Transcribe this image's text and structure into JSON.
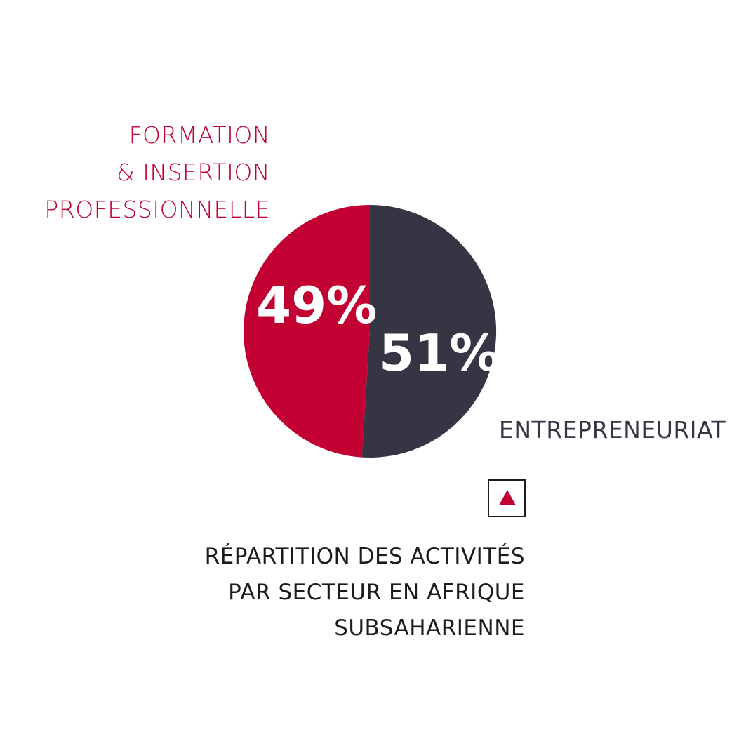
{
  "chart_data": {
    "type": "pie",
    "slices": [
      {
        "name_lines": [
          "FORMATION",
          "& INSERTION",
          "PROFESSIONNELLE"
        ],
        "value": 49,
        "value_label": "49%",
        "color": "#c30032"
      },
      {
        "name_lines": [
          "ENTREPRENEURIAT"
        ],
        "value": 51,
        "value_label": "51%",
        "color": "#363543"
      }
    ],
    "start_angle_deg": 0,
    "direction": "clockwise"
  },
  "caption": {
    "lines": [
      "RÉPARTITION DES ACTIVITÉS",
      "PAR SECTEUR EN AFRIQUE",
      "SUBSAHARIENNE"
    ]
  },
  "icon": {
    "name": "triangle-up-icon",
    "color": "#c30032"
  }
}
